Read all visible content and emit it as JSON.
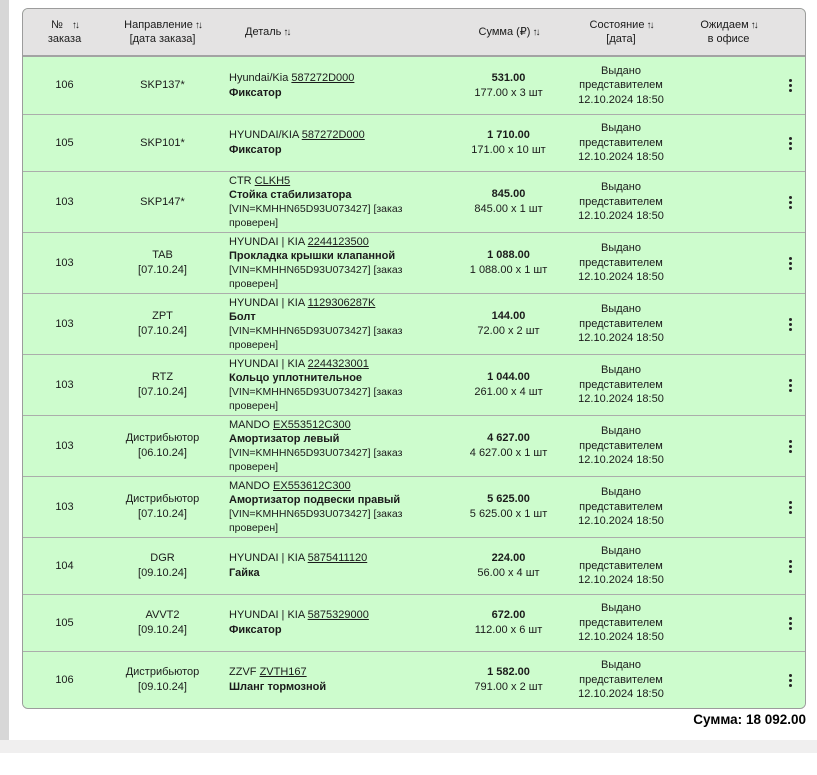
{
  "table": {
    "sort_icon": "↑↓",
    "columns": [
      {
        "label": "№",
        "sub": "заказа"
      },
      {
        "label": "Направление",
        "sub": "[дата заказа]"
      },
      {
        "label": "Деталь"
      },
      {
        "label": "Сумма (₽)"
      },
      {
        "label": "Состояние",
        "sub": "[дата]"
      },
      {
        "label": "Ожидаем",
        "sub": "в офисе"
      }
    ],
    "rows": [
      {
        "order_no": "106",
        "direction": "SKP137*",
        "direction_date": "",
        "brand": "Hyundai/Kia",
        "part_number": "587272D000",
        "part_name": "Фиксатор",
        "note": "",
        "sum": "531.00",
        "sum_detail": "177.00 x 3 шт",
        "status": "Выдано представителем",
        "status_date": "12.10.2024 18:50"
      },
      {
        "order_no": "105",
        "direction": "SKP101*",
        "direction_date": "",
        "brand": "HYUNDAI/KIA",
        "part_number": "587272D000",
        "part_name": "Фиксатор",
        "note": "",
        "sum": "1 710.00",
        "sum_detail": "171.00 x 10 шт",
        "status": "Выдано представителем",
        "status_date": "12.10.2024 18:50"
      },
      {
        "order_no": "103",
        "direction": "SKP147*",
        "direction_date": "",
        "brand": "CTR",
        "part_number": "CLKH5",
        "part_name": "Стойка стабилизатора",
        "note": "[VIN=KMHHN65D93U073427] [заказ проверен]",
        "sum": "845.00",
        "sum_detail": "845.00 x 1 шт",
        "status": "Выдано представителем",
        "status_date": "12.10.2024 18:50"
      },
      {
        "order_no": "103",
        "direction": "TAB",
        "direction_date": "[07.10.24]",
        "brand": "HYUNDAI | KIA",
        "part_number": "2244123500",
        "part_name": "Прокладка крышки клапанной",
        "note": "[VIN=KMHHN65D93U073427] [заказ проверен]",
        "sum": "1 088.00",
        "sum_detail": "1 088.00 x 1 шт",
        "status": "Выдано представителем",
        "status_date": "12.10.2024 18:50"
      },
      {
        "order_no": "103",
        "direction": "ZPT",
        "direction_date": "[07.10.24]",
        "brand": "HYUNDAI | KIA",
        "part_number": "1129306287K",
        "part_name": "Болт",
        "note": "[VIN=KMHHN65D93U073427] [заказ проверен]",
        "sum": "144.00",
        "sum_detail": "72.00 x 2 шт",
        "status": "Выдано представителем",
        "status_date": "12.10.2024 18:50"
      },
      {
        "order_no": "103",
        "direction": "RTZ",
        "direction_date": "[07.10.24]",
        "brand": "HYUNDAI | KIA",
        "part_number": "2244323001",
        "part_name": "Кольцо уплотнительное",
        "note": "[VIN=KMHHN65D93U073427] [заказ проверен]",
        "sum": "1 044.00",
        "sum_detail": "261.00 x 4 шт",
        "status": "Выдано представителем",
        "status_date": "12.10.2024 18:50"
      },
      {
        "order_no": "103",
        "direction": "Дистрибьютор",
        "direction_date": "[06.10.24]",
        "brand": "MANDO",
        "part_number": "EX553512C300",
        "part_name": "Амортизатор левый",
        "note": "[VIN=KMHHN65D93U073427] [заказ проверен]",
        "sum": "4 627.00",
        "sum_detail": "4 627.00 x 1 шт",
        "status": "Выдано представителем",
        "status_date": "12.10.2024 18:50"
      },
      {
        "order_no": "103",
        "direction": "Дистрибьютор",
        "direction_date": "[07.10.24]",
        "brand": "MANDO",
        "part_number": "EX553612C300",
        "part_name": "Амортизатор подвески правый",
        "note": "[VIN=KMHHN65D93U073427] [заказ проверен]",
        "sum": "5 625.00",
        "sum_detail": "5 625.00 x 1 шт",
        "status": "Выдано представителем",
        "status_date": "12.10.2024 18:50"
      },
      {
        "order_no": "104",
        "direction": "DGR",
        "direction_date": "[09.10.24]",
        "brand": "HYUNDAI | KIA",
        "part_number": "5875411120",
        "part_name": "Гайка",
        "note": "",
        "sum": "224.00",
        "sum_detail": "56.00 x 4 шт",
        "status": "Выдано представителем",
        "status_date": "12.10.2024 18:50"
      },
      {
        "order_no": "105",
        "direction": "AVVT2",
        "direction_date": "[09.10.24]",
        "brand": "HYUNDAI | KIA",
        "part_number": "5875329000",
        "part_name": "Фиксатор",
        "note": "",
        "sum": "672.00",
        "sum_detail": "112.00 x 6 шт",
        "status": "Выдано представителем",
        "status_date": "12.10.2024 18:50"
      },
      {
        "order_no": "106",
        "direction": "Дистрибьютор",
        "direction_date": "[09.10.24]",
        "brand": "ZZVF",
        "part_number": "ZVTH167",
        "part_name": "Шланг тормозной",
        "note": "",
        "sum": "1 582.00",
        "sum_detail": "791.00 x 2 шт",
        "status": "Выдано представителем",
        "status_date": "12.10.2024 18:50"
      }
    ]
  },
  "footer": {
    "total_label": "Сумма:",
    "total_value": "18 092.00"
  }
}
